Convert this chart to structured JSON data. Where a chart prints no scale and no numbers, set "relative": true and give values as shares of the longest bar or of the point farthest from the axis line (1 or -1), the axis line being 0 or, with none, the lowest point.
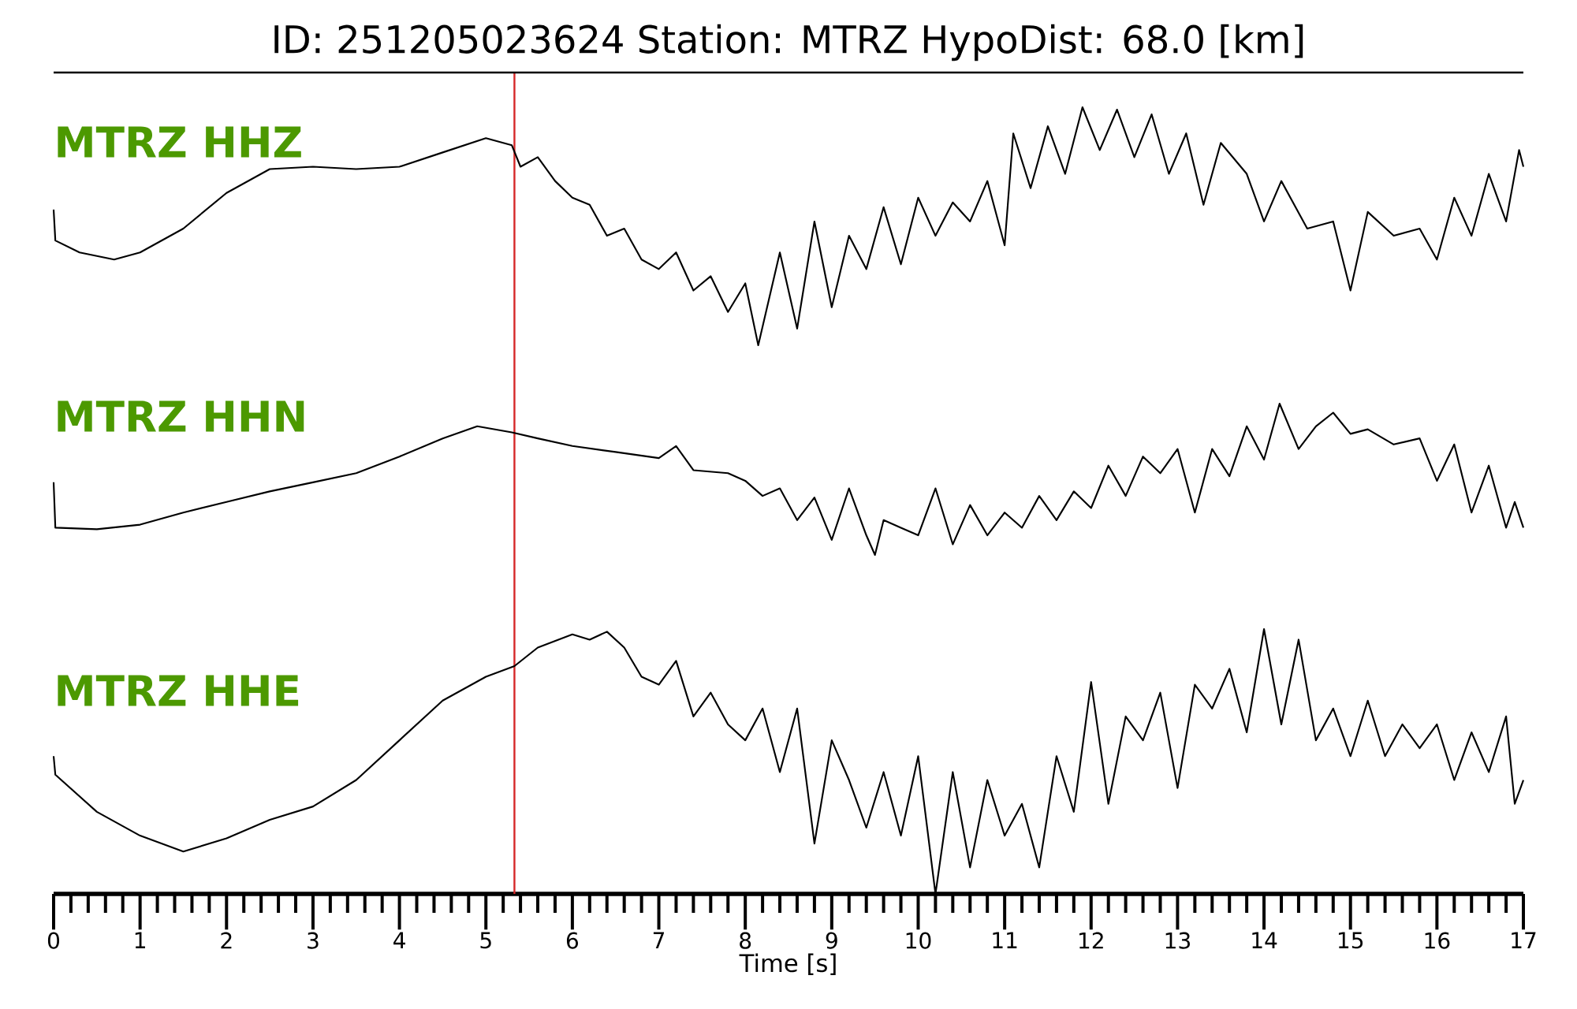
{
  "chart_data": [
    {
      "type": "line",
      "title": "ID: 251205023624   Station: MTRZ   HypoDist:    68.0 [km]",
      "relative": true,
      "xlim": [
        0,
        17
      ],
      "tick_labels": false,
      "ref_lines": [
        {
          "axis": "x",
          "value": 5.33,
          "color": "#d62728"
        }
      ],
      "series": [
        {
          "name": "MTRZ HHZ",
          "color": "#000000",
          "x": [
            0,
            0.02,
            0.3,
            0.7,
            1.0,
            1.5,
            2.0,
            2.5,
            3.0,
            3.5,
            4.0,
            4.5,
            5.0,
            5.3,
            5.4,
            5.6,
            5.8,
            6.0,
            6.2,
            6.4,
            6.6,
            6.8,
            7.0,
            7.2,
            7.4,
            7.6,
            7.8,
            8.0,
            8.15,
            8.4,
            8.6,
            8.8,
            9.0,
            9.2,
            9.4,
            9.6,
            9.8,
            10.0,
            10.2,
            10.4,
            10.6,
            10.8,
            11.0,
            11.1,
            11.3,
            11.5,
            11.7,
            11.9,
            12.1,
            12.3,
            12.5,
            12.7,
            12.9,
            13.1,
            13.3,
            13.5,
            13.8,
            14.0,
            14.2,
            14.5,
            14.8,
            15.0,
            15.2,
            15.5,
            15.8,
            16.0,
            16.2,
            16.4,
            16.6,
            16.8,
            16.95,
            17.0
          ],
          "values": [
            0.57,
            0.44,
            0.39,
            0.36,
            0.39,
            0.49,
            0.64,
            0.74,
            0.75,
            0.74,
            0.75,
            0.81,
            0.87,
            0.84,
            0.75,
            0.79,
            0.69,
            0.62,
            0.59,
            0.46,
            0.49,
            0.36,
            0.32,
            0.39,
            0.23,
            0.29,
            0.14,
            0.26,
            0,
            0.39,
            0.07,
            0.52,
            0.16,
            0.46,
            0.32,
            0.58,
            0.34,
            0.62,
            0.46,
            0.6,
            0.52,
            0.69,
            0.42,
            0.89,
            0.66,
            0.92,
            0.72,
            1,
            0.82,
            0.99,
            0.79,
            0.97,
            0.72,
            0.89,
            0.59,
            0.85,
            0.72,
            0.52,
            0.69,
            0.49,
            0.52,
            0.23,
            0.56,
            0.46,
            0.49,
            0.36,
            0.62,
            0.46,
            0.72,
            0.52,
            0.82,
            0.75
          ]
        }
      ]
    },
    {
      "type": "line",
      "relative": true,
      "xlim": [
        0,
        17
      ],
      "tick_labels": false,
      "ref_lines": [
        {
          "axis": "x",
          "value": 5.33,
          "color": "#d62728"
        }
      ],
      "series": [
        {
          "name": "MTRZ HHN",
          "color": "#000000",
          "x": [
            0,
            0.02,
            0.5,
            1.0,
            1.5,
            2.0,
            2.5,
            3.0,
            3.5,
            4.0,
            4.5,
            4.9,
            5.3,
            5.6,
            6.0,
            6.5,
            7.0,
            7.2,
            7.4,
            7.8,
            8.0,
            8.2,
            8.4,
            8.6,
            8.8,
            9.0,
            9.2,
            9.4,
            9.5,
            9.6,
            9.8,
            10.0,
            10.2,
            10.4,
            10.6,
            10.8,
            11.0,
            11.2,
            11.4,
            11.6,
            11.8,
            12.0,
            12.2,
            12.4,
            12.6,
            12.8,
            13.0,
            13.2,
            13.4,
            13.6,
            13.8,
            14.0,
            14.18,
            14.4,
            14.6,
            14.8,
            15.0,
            15.2,
            15.5,
            15.8,
            16.0,
            16.2,
            16.4,
            16.6,
            16.8,
            16.9,
            17.0
          ],
          "values": [
            0.48,
            0.18,
            0.17,
            0.2,
            0.28,
            0.35,
            0.42,
            0.48,
            0.54,
            0.65,
            0.77,
            0.85,
            0.81,
            0.77,
            0.72,
            0.68,
            0.64,
            0.72,
            0.56,
            0.54,
            0.49,
            0.39,
            0.44,
            0.23,
            0.38,
            0.1,
            0.44,
            0.13,
            0,
            0.23,
            0.18,
            0.13,
            0.44,
            0.07,
            0.33,
            0.13,
            0.28,
            0.18,
            0.39,
            0.23,
            0.42,
            0.31,
            0.59,
            0.39,
            0.65,
            0.54,
            0.7,
            0.28,
            0.7,
            0.52,
            0.85,
            0.63,
            1,
            0.7,
            0.85,
            0.94,
            0.8,
            0.83,
            0.73,
            0.77,
            0.49,
            0.73,
            0.28,
            0.59,
            0.18,
            0.35,
            0.18
          ]
        }
      ]
    },
    {
      "type": "line",
      "relative": true,
      "xlim": [
        0,
        17
      ],
      "xlabel": "Time [s]",
      "ref_lines": [
        {
          "axis": "x",
          "value": 5.33,
          "color": "#d62728"
        }
      ],
      "xticks": [
        0,
        1,
        2,
        3,
        4,
        5,
        6,
        7,
        8,
        9,
        10,
        11,
        12,
        13,
        14,
        15,
        16,
        17,
        {
          "value": 0.2,
          "label": null
        },
        {
          "value": 0.4,
          "label": null
        },
        {
          "value": 0.6,
          "label": null
        },
        {
          "value": 0.8,
          "label": null
        },
        {
          "value": 1.2,
          "label": null
        },
        {
          "value": 1.4,
          "label": null
        },
        {
          "value": 1.6,
          "label": null
        },
        {
          "value": 1.8,
          "label": null
        },
        {
          "value": 2.2,
          "label": null
        },
        {
          "value": 2.4,
          "label": null
        },
        {
          "value": 2.6,
          "label": null
        },
        {
          "value": 2.8,
          "label": null
        },
        {
          "value": 3.2,
          "label": null
        },
        {
          "value": 3.4,
          "label": null
        },
        {
          "value": 3.6,
          "label": null
        },
        {
          "value": 3.8,
          "label": null
        },
        {
          "value": 4.2,
          "label": null
        },
        {
          "value": 4.4,
          "label": null
        },
        {
          "value": 4.6,
          "label": null
        },
        {
          "value": 4.8,
          "label": null
        },
        {
          "value": 5.2,
          "label": null
        },
        {
          "value": 5.4,
          "label": null
        },
        {
          "value": 5.6,
          "label": null
        },
        {
          "value": 5.8,
          "label": null
        },
        {
          "value": 6.2,
          "label": null
        },
        {
          "value": 6.4,
          "label": null
        },
        {
          "value": 6.6,
          "label": null
        },
        {
          "value": 6.8,
          "label": null
        },
        {
          "value": 7.2,
          "label": null
        },
        {
          "value": 7.4,
          "label": null
        },
        {
          "value": 7.6,
          "label": null
        },
        {
          "value": 7.8,
          "label": null
        },
        {
          "value": 8.2,
          "label": null
        },
        {
          "value": 8.4,
          "label": null
        },
        {
          "value": 8.6,
          "label": null
        },
        {
          "value": 8.8,
          "label": null
        },
        {
          "value": 9.2,
          "label": null
        },
        {
          "value": 9.4,
          "label": null
        },
        {
          "value": 9.6,
          "label": null
        },
        {
          "value": 9.8,
          "label": null
        },
        {
          "value": 10.2,
          "label": null
        },
        {
          "value": 10.4,
          "label": null
        },
        {
          "value": 10.6,
          "label": null
        },
        {
          "value": 10.8,
          "label": null
        },
        {
          "value": 11.2,
          "label": null
        },
        {
          "value": 11.4,
          "label": null
        },
        {
          "value": 11.6,
          "label": null
        },
        {
          "value": 11.8,
          "label": null
        },
        {
          "value": 12.2,
          "label": null
        },
        {
          "value": 12.4,
          "label": null
        },
        {
          "value": 12.6,
          "label": null
        },
        {
          "value": 12.8,
          "label": null
        },
        {
          "value": 13.2,
          "label": null
        },
        {
          "value": 13.4,
          "label": null
        },
        {
          "value": 13.6,
          "label": null
        },
        {
          "value": 13.8,
          "label": null
        },
        {
          "value": 14.2,
          "label": null
        },
        {
          "value": 14.4,
          "label": null
        },
        {
          "value": 14.6,
          "label": null
        },
        {
          "value": 14.8,
          "label": null
        },
        {
          "value": 15.2,
          "label": null
        },
        {
          "value": 15.4,
          "label": null
        },
        {
          "value": 15.6,
          "label": null
        },
        {
          "value": 15.8,
          "label": null
        },
        {
          "value": 16.2,
          "label": null
        },
        {
          "value": 16.4,
          "label": null
        },
        {
          "value": 16.6,
          "label": null
        },
        {
          "value": 16.8,
          "label": null
        }
      ],
      "series": [
        {
          "name": "MTRZ HHE",
          "color": "#000000",
          "x": [
            0,
            0.02,
            0.5,
            1.0,
            1.5,
            2.0,
            2.5,
            3.0,
            3.5,
            4.0,
            4.5,
            5.0,
            5.33,
            5.6,
            6.0,
            6.2,
            6.4,
            6.6,
            6.8,
            7.0,
            7.2,
            7.4,
            7.6,
            7.8,
            8.0,
            8.2,
            8.4,
            8.6,
            8.8,
            9.0,
            9.2,
            9.4,
            9.6,
            9.8,
            10.0,
            10.2,
            10.4,
            10.6,
            10.8,
            11.0,
            11.2,
            11.4,
            11.6,
            11.8,
            12.0,
            12.2,
            12.4,
            12.6,
            12.8,
            13.0,
            13.2,
            13.4,
            13.6,
            13.8,
            14.0,
            14.2,
            14.4,
            14.6,
            14.8,
            15.0,
            15.2,
            15.4,
            15.6,
            15.8,
            16.0,
            16.2,
            16.4,
            16.6,
            16.8,
            16.9,
            17.0
          ],
          "values": [
            0.52,
            0.45,
            0.31,
            0.22,
            0.16,
            0.21,
            0.28,
            0.33,
            0.43,
            0.58,
            0.73,
            0.82,
            0.86,
            0.93,
            0.98,
            0.96,
            0.99,
            0.93,
            0.82,
            0.79,
            0.88,
            0.67,
            0.76,
            0.64,
            0.58,
            0.7,
            0.46,
            0.7,
            0.19,
            0.58,
            0.43,
            0.25,
            0.46,
            0.22,
            0.52,
            0,
            0.46,
            0.1,
            0.43,
            0.22,
            0.34,
            0.1,
            0.52,
            0.31,
            0.8,
            0.34,
            0.67,
            0.58,
            0.76,
            0.4,
            0.79,
            0.7,
            0.85,
            0.61,
            1,
            0.64,
            0.96,
            0.58,
            0.7,
            0.52,
            0.73,
            0.52,
            0.64,
            0.55,
            0.64,
            0.43,
            0.61,
            0.46,
            0.67,
            0.34,
            0.43
          ]
        }
      ]
    }
  ]
}
